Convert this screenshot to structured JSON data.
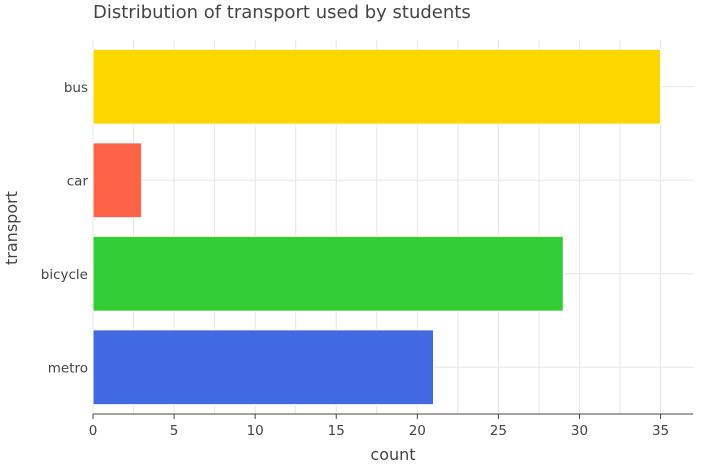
{
  "chart_data": {
    "type": "bar",
    "orientation": "horizontal",
    "title": "Distribution of transport used by students",
    "xlabel": "count",
    "ylabel": "transport",
    "categories": [
      "bus",
      "car",
      "bicycle",
      "metro"
    ],
    "values": [
      35,
      3,
      29,
      21
    ],
    "colors": [
      "#ffd700",
      "#ff6347",
      "#32cd32",
      "#4169e1"
    ],
    "xlim": [
      0,
      37
    ],
    "xticks": [
      0,
      5,
      10,
      15,
      20,
      25,
      30,
      35
    ],
    "grid": true,
    "legend": "none"
  }
}
